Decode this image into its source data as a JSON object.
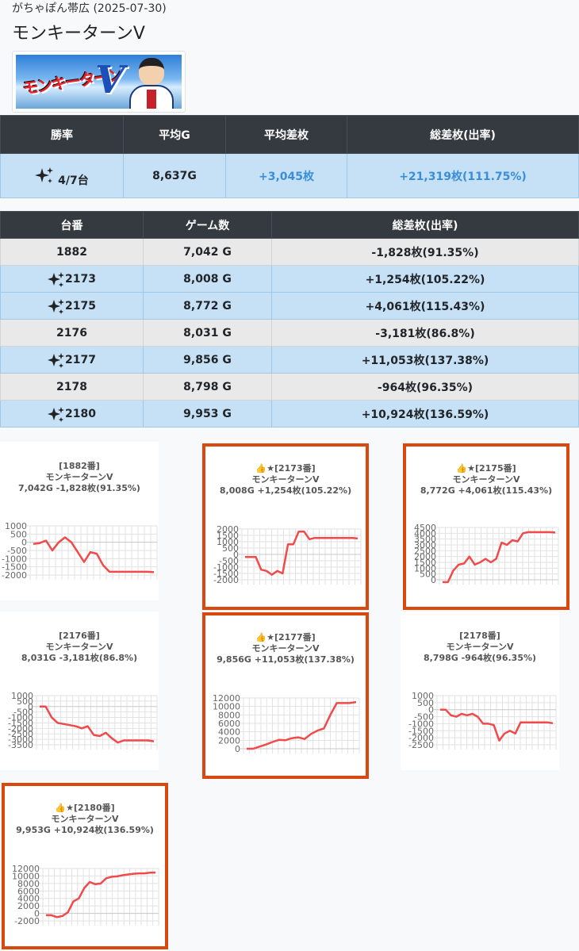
{
  "header": {
    "subtitle": "がちゃぽん帯広 (2025-07-30)",
    "title": "モンキーターンV"
  },
  "banner": {
    "logo_text": "モンキーターン",
    "logo_v": "V"
  },
  "summary": {
    "headers": [
      "勝率",
      "平均G",
      "平均差枚",
      "総差枚(出率)"
    ],
    "win_rate": "4/7台",
    "avg_games": "8,637G",
    "avg_diff": "+3,045枚",
    "total": "+21,319枚(111.75%)"
  },
  "machines": {
    "headers": [
      "台番",
      "ゲーム数",
      "総差枚(出率)"
    ],
    "rows": [
      {
        "num": "1882",
        "games": "7,042 G",
        "total": "-1,828枚(91.35%)",
        "win": false
      },
      {
        "num": "2173",
        "games": "8,008 G",
        "total": "+1,254枚(105.22%)",
        "win": true
      },
      {
        "num": "2175",
        "games": "8,772 G",
        "total": "+4,061枚(115.43%)",
        "win": true
      },
      {
        "num": "2176",
        "games": "8,031 G",
        "total": "-3,181枚(86.8%)",
        "win": false
      },
      {
        "num": "2177",
        "games": "9,856 G",
        "total": "+11,053枚(137.38%)",
        "win": true
      },
      {
        "num": "2178",
        "games": "8,798 G",
        "total": "-964枚(96.35%)",
        "win": false
      },
      {
        "num": "2180",
        "games": "9,953 G",
        "total": "+10,924枚(136.59%)",
        "win": true
      }
    ]
  },
  "colors": {
    "line": "#f04a4a",
    "highlight_border": "#d9480f",
    "win_row": "#c6e0f5",
    "header_bg": "#343a40",
    "accent_blue": "#3a8ed8"
  },
  "icons": {
    "sparkle": "sparkle-icon",
    "thumb": "👍",
    "star": "★"
  },
  "charts": [
    {
      "id": "1882",
      "title": "[1882番]",
      "model": "モンキーターンV",
      "stats": "7,042G -1,828枚(91.35%)",
      "highlight": false,
      "chart_data": {
        "type": "line",
        "ylim": [
          -2000,
          1000
        ],
        "yticks": [
          1000,
          500,
          0,
          -500,
          -1000,
          -1500,
          -2000
        ],
        "values": [
          -100,
          -50,
          100,
          -500,
          0,
          300,
          0,
          -600,
          -1200,
          -600,
          -700,
          -1400,
          -1800,
          -1800,
          -1800,
          -1800,
          -1800,
          -1800,
          -1800,
          -1828
        ]
      }
    },
    {
      "id": "2173",
      "title": "[2173番]",
      "model": "モンキーターンV",
      "stats": "8,008G +1,254枚(105.22%)",
      "highlight": true,
      "chart_data": {
        "type": "line",
        "ylim": [
          -2000,
          2000
        ],
        "yticks": [
          2000,
          1500,
          1000,
          500,
          0,
          -500,
          -1000,
          -1500,
          -2000
        ],
        "values": [
          -200,
          -200,
          -200,
          -1200,
          -1300,
          -1600,
          -1300,
          -1500,
          800,
          800,
          1800,
          1800,
          1200,
          1300,
          1300,
          1300,
          1300,
          1300,
          1300,
          1300,
          1300,
          1254
        ]
      }
    },
    {
      "id": "2175",
      "title": "[2175番]",
      "model": "モンキーターンV",
      "stats": "8,772G +4,061枚(115.43%)",
      "highlight": true,
      "chart_data": {
        "type": "line",
        "ylim": [
          0,
          4500
        ],
        "yticks": [
          4500,
          4000,
          3500,
          3000,
          2500,
          2000,
          1500,
          1000,
          500,
          0
        ],
        "values": [
          -200,
          -200,
          800,
          1300,
          1400,
          2000,
          1300,
          1500,
          1800,
          1500,
          1800,
          3200,
          3000,
          3400,
          3300,
          4000,
          4100,
          4100,
          4100,
          4100,
          4100,
          4061
        ]
      }
    },
    {
      "id": "2176",
      "title": "[2176番]",
      "model": "モンキーターンV",
      "stats": "8,031G -3,181枚(86.8%)",
      "highlight": false,
      "chart_data": {
        "type": "line",
        "ylim": [
          -3500,
          1000
        ],
        "yticks": [
          1000,
          500,
          0,
          -500,
          -1000,
          -1500,
          -2000,
          -2500,
          -3000,
          -3500
        ],
        "values": [
          0,
          0,
          -1000,
          -1500,
          -1600,
          -1700,
          -1800,
          -2000,
          -1800,
          -2600,
          -2700,
          -2400,
          -2900,
          -3300,
          -3100,
          -3100,
          -3100,
          -3100,
          -3100,
          -3181
        ]
      }
    },
    {
      "id": "2177",
      "title": "[2177番]",
      "model": "モンキーターンV",
      "stats": "9,856G +11,053枚(137.38%)",
      "highlight": true,
      "chart_data": {
        "type": "line",
        "ylim": [
          0,
          12000
        ],
        "yticks": [
          12000,
          10000,
          8000,
          6000,
          4000,
          2000,
          0
        ],
        "values": [
          0,
          0,
          500,
          1000,
          1600,
          2100,
          2000,
          2500,
          2700,
          2300,
          3500,
          4300,
          4800,
          8000,
          10800,
          10800,
          10800,
          11053
        ]
      }
    },
    {
      "id": "2178",
      "title": "[2178番]",
      "model": "モンキーターンV",
      "stats": "8,798G -964枚(96.35%)",
      "highlight": false,
      "chart_data": {
        "type": "line",
        "ylim": [
          -2500,
          1000
        ],
        "yticks": [
          1000,
          500,
          0,
          -500,
          -1000,
          -1500,
          -2000,
          -2500
        ],
        "values": [
          0,
          0,
          -400,
          -500,
          -300,
          -400,
          -300,
          -500,
          -1000,
          -1000,
          -1100,
          -2200,
          -1700,
          -1500,
          -1700,
          -900,
          -900,
          -900,
          -900,
          -900,
          -900,
          -964
        ]
      }
    },
    {
      "id": "2180",
      "title": "[2180番]",
      "model": "モンキーターンV",
      "stats": "9,953G +10,924枚(136.59%)",
      "highlight": true,
      "chart_data": {
        "type": "line",
        "ylim": [
          -2000,
          12000
        ],
        "yticks": [
          12000,
          10000,
          8000,
          6000,
          4000,
          2000,
          0,
          -2000
        ],
        "values": [
          -500,
          -500,
          -1000,
          -700,
          300,
          3200,
          4000,
          6800,
          8400,
          7800,
          8000,
          9400,
          9800,
          9900,
          10200,
          10400,
          10600,
          10700,
          10700,
          10900,
          10924
        ]
      }
    }
  ]
}
